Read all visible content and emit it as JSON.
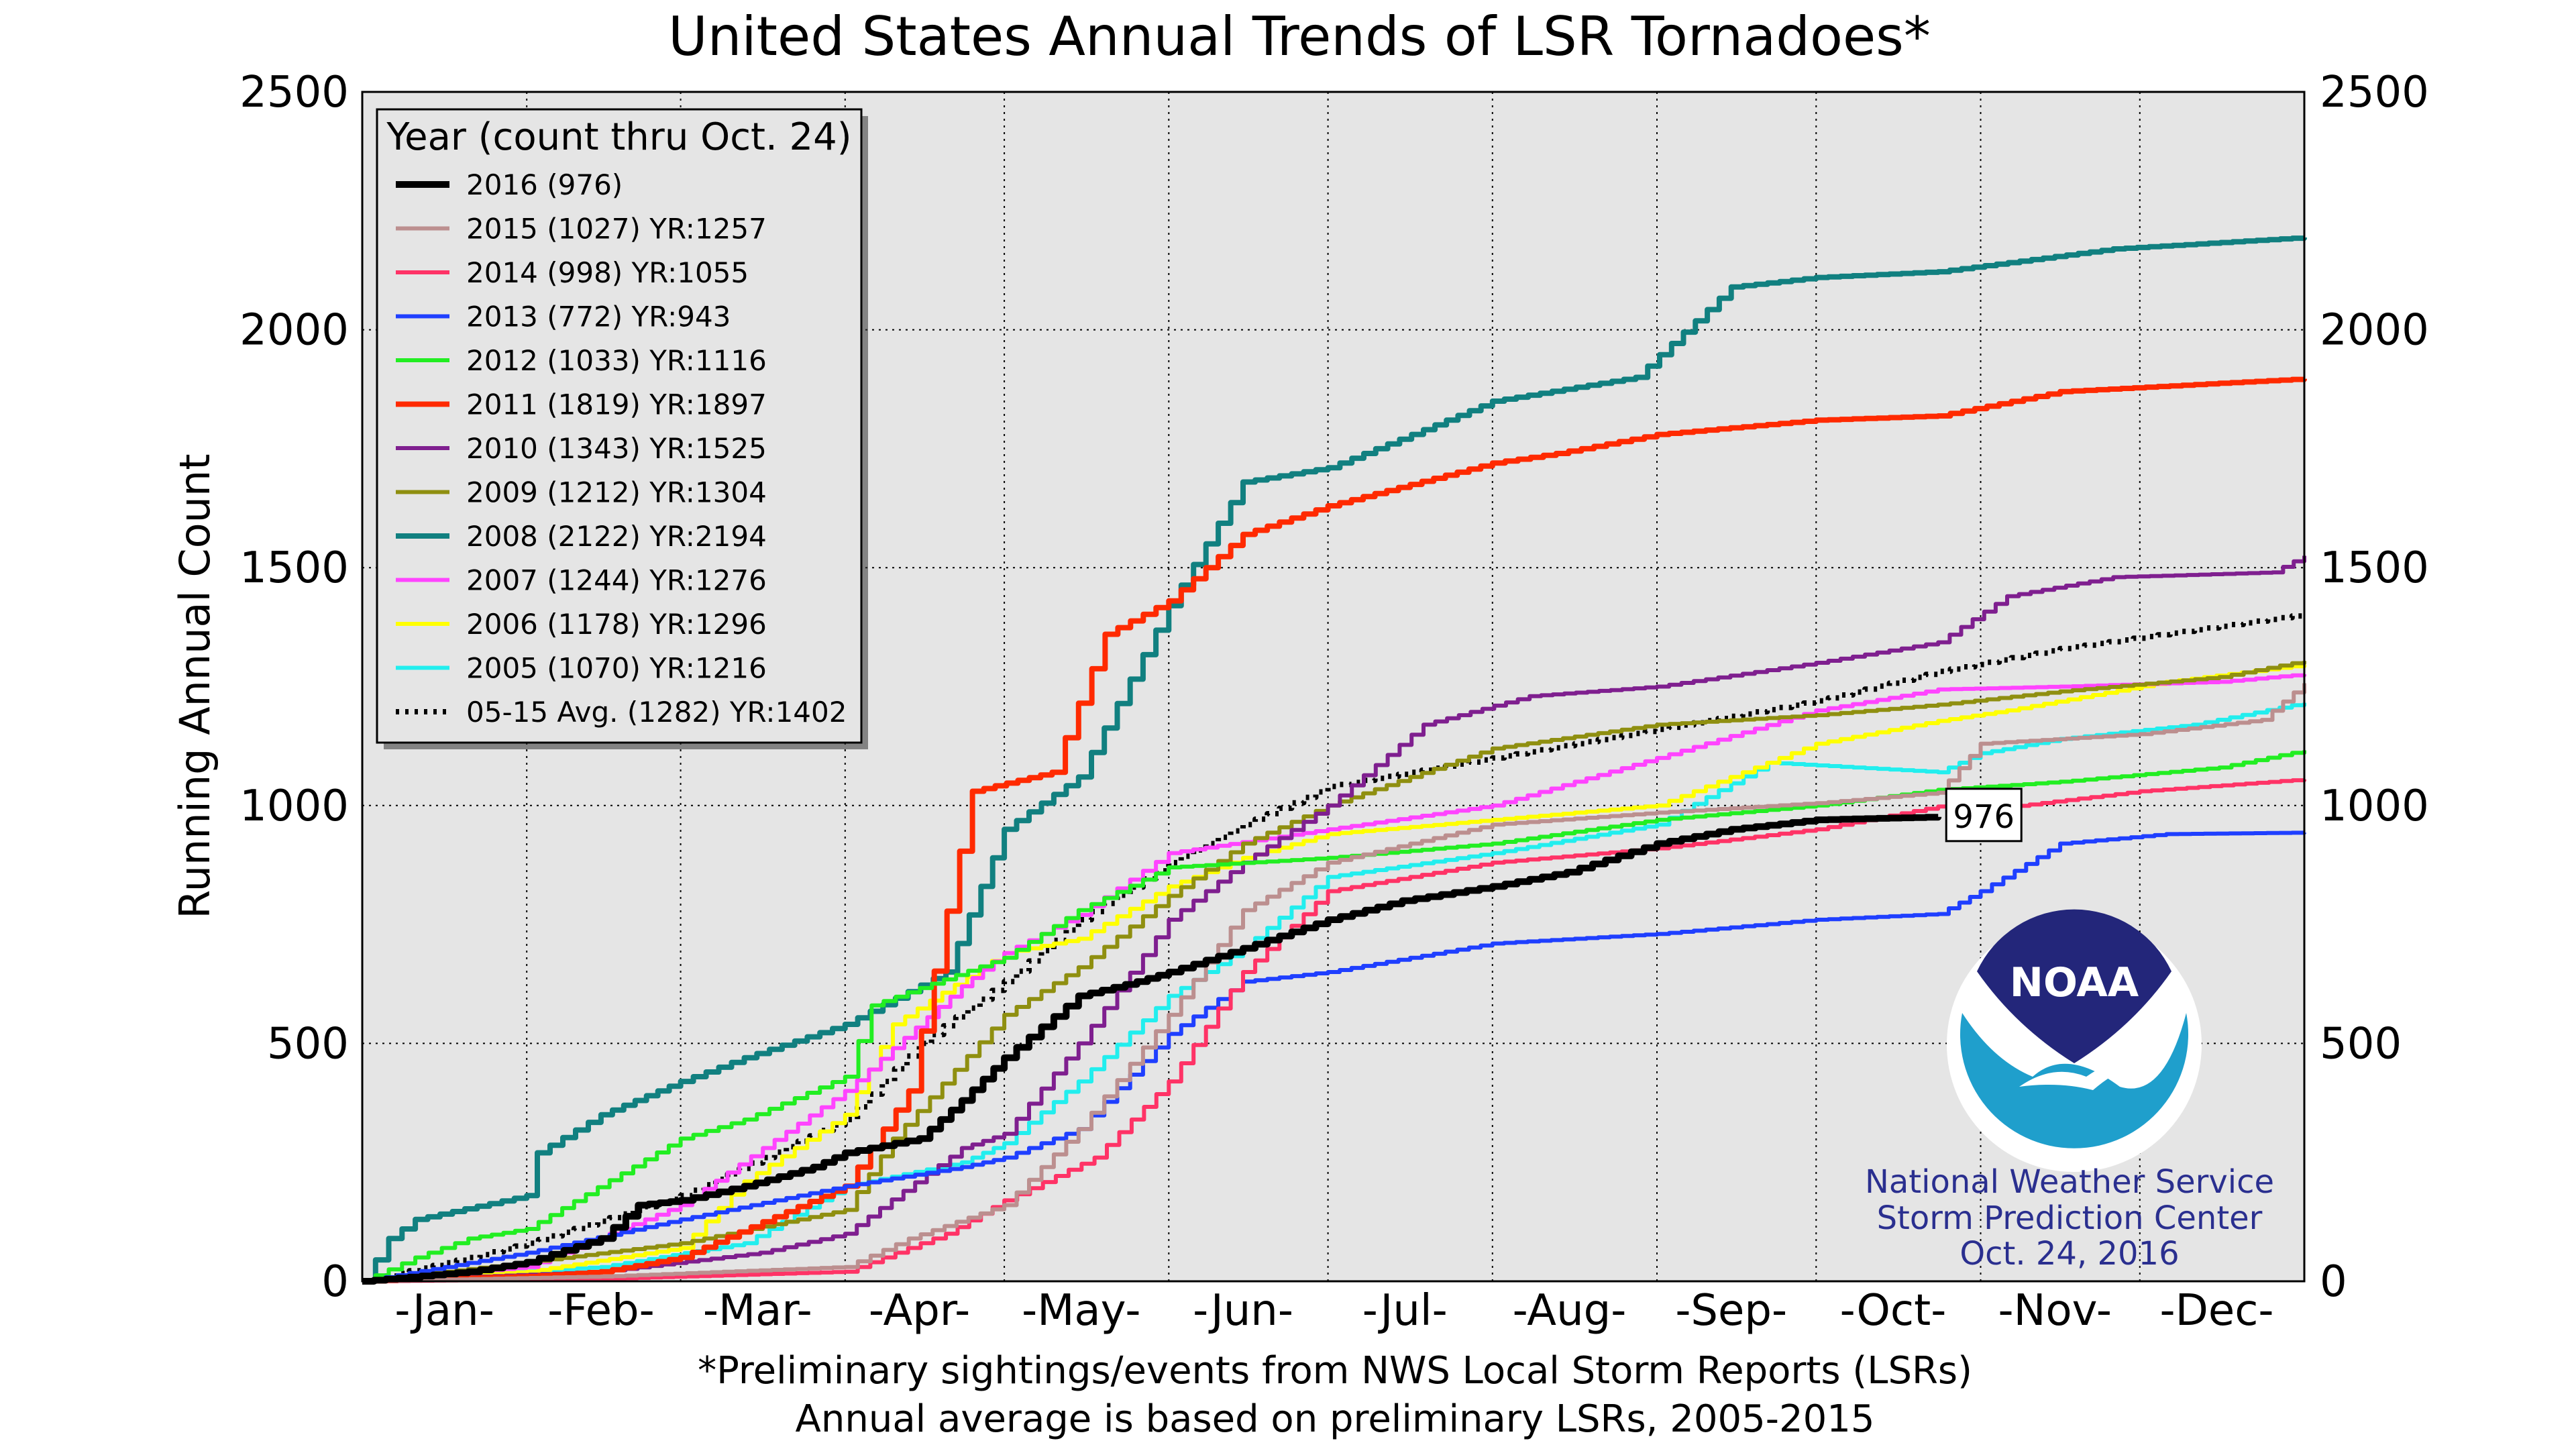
{
  "chart_data": {
    "type": "line",
    "title": "United States Annual Trends of LSR Tornadoes*",
    "ylabel": "Running Annual Count",
    "ylim": [
      0,
      2500
    ],
    "yticks": [
      0,
      500,
      1000,
      1500,
      2000,
      2500
    ],
    "x_unit": "day of year",
    "xlim": [
      0,
      366
    ],
    "months": [
      {
        "label": "-Jan-",
        "center": 15.5
      },
      {
        "label": "-Feb-",
        "center": 45
      },
      {
        "label": "-Mar-",
        "center": 74.5
      },
      {
        "label": "-Apr-",
        "center": 105
      },
      {
        "label": "-May-",
        "center": 135.5
      },
      {
        "label": "-Jun-",
        "center": 166
      },
      {
        "label": "-Jul-",
        "center": 196.5
      },
      {
        "label": "-Aug-",
        "center": 227.5
      },
      {
        "label": "-Sep-",
        "center": 258
      },
      {
        "label": "-Oct-",
        "center": 288.5
      },
      {
        "label": "-Nov-",
        "center": 319
      },
      {
        "label": "-Dec-",
        "center": 349.5
      }
    ],
    "month_gridlines": [
      31,
      60,
      91,
      121,
      152,
      182,
      213,
      244,
      274,
      305,
      335
    ],
    "legend": {
      "title": "Year (count thru Oct. 24)",
      "position": "upper-left"
    },
    "grid": true,
    "series": [
      {
        "label": "2016 (976)",
        "color": "#000000",
        "width": 5,
        "dash": "",
        "points": [
          [
            0,
            0
          ],
          [
            20,
            20
          ],
          [
            31,
            40
          ],
          [
            45,
            90
          ],
          [
            52,
            160
          ],
          [
            60,
            170
          ],
          [
            72,
            200
          ],
          [
            85,
            240
          ],
          [
            91,
            270
          ],
          [
            105,
            300
          ],
          [
            113,
            380
          ],
          [
            121,
            470
          ],
          [
            135,
            600
          ],
          [
            146,
            630
          ],
          [
            152,
            650
          ],
          [
            166,
            700
          ],
          [
            182,
            760
          ],
          [
            196,
            800
          ],
          [
            213,
            830
          ],
          [
            227,
            860
          ],
          [
            244,
            920
          ],
          [
            258,
            950
          ],
          [
            274,
            970
          ],
          [
            297,
            976
          ]
        ]
      },
      {
        "label": "2015 (1027) YR:1257",
        "color": "#bc8f8f",
        "width": 3,
        "dash": "",
        "points": [
          [
            0,
            0
          ],
          [
            45,
            10
          ],
          [
            91,
            30
          ],
          [
            103,
            90
          ],
          [
            121,
            160
          ],
          [
            135,
            320
          ],
          [
            152,
            560
          ],
          [
            166,
            780
          ],
          [
            182,
            880
          ],
          [
            213,
            960
          ],
          [
            244,
            985
          ],
          [
            274,
            1005
          ],
          [
            297,
            1027
          ],
          [
            305,
            1130
          ],
          [
            335,
            1150
          ],
          [
            358,
            1180
          ],
          [
            366,
            1257
          ]
        ]
      },
      {
        "label": "2014 (998) YR:1055",
        "color": "#ff3366",
        "width": 3,
        "dash": "",
        "points": [
          [
            0,
            0
          ],
          [
            45,
            5
          ],
          [
            91,
            20
          ],
          [
            110,
            100
          ],
          [
            121,
            170
          ],
          [
            138,
            260
          ],
          [
            152,
            420
          ],
          [
            166,
            650
          ],
          [
            182,
            820
          ],
          [
            213,
            880
          ],
          [
            244,
            910
          ],
          [
            274,
            950
          ],
          [
            297,
            998
          ],
          [
            305,
            990
          ],
          [
            335,
            1030
          ],
          [
            366,
            1055
          ]
        ]
      },
      {
        "label": "2013 (772) YR:943",
        "color": "#1f3fff",
        "width": 3,
        "dash": "",
        "points": [
          [
            0,
            0
          ],
          [
            31,
            60
          ],
          [
            60,
            130
          ],
          [
            91,
            200
          ],
          [
            113,
            240
          ],
          [
            121,
            260
          ],
          [
            135,
            320
          ],
          [
            152,
            520
          ],
          [
            166,
            630
          ],
          [
            182,
            650
          ],
          [
            213,
            710
          ],
          [
            244,
            730
          ],
          [
            274,
            760
          ],
          [
            297,
            772
          ],
          [
            305,
            820
          ],
          [
            320,
            920
          ],
          [
            340,
            940
          ],
          [
            366,
            943
          ]
        ]
      },
      {
        "label": "2012 (1033) YR:1116",
        "color": "#22ee22",
        "width": 3,
        "dash": "",
        "points": [
          [
            0,
            0
          ],
          [
            10,
            50
          ],
          [
            20,
            90
          ],
          [
            31,
            110
          ],
          [
            60,
            300
          ],
          [
            72,
            340
          ],
          [
            91,
            430
          ],
          [
            96,
            580
          ],
          [
            121,
            680
          ],
          [
            135,
            780
          ],
          [
            152,
            870
          ],
          [
            182,
            890
          ],
          [
            213,
            920
          ],
          [
            244,
            970
          ],
          [
            274,
            1000
          ],
          [
            297,
            1033
          ],
          [
            320,
            1050
          ],
          [
            350,
            1080
          ],
          [
            366,
            1116
          ]
        ]
      },
      {
        "label": "2011 (1819) YR:1897",
        "color": "#ff2a00",
        "width": 4,
        "dash": "",
        "points": [
          [
            0,
            0
          ],
          [
            31,
            10
          ],
          [
            45,
            20
          ],
          [
            60,
            50
          ],
          [
            91,
            200
          ],
          [
            103,
            400
          ],
          [
            115,
            1030
          ],
          [
            130,
            1070
          ],
          [
            140,
            1360
          ],
          [
            152,
            1430
          ],
          [
            166,
            1570
          ],
          [
            182,
            1630
          ],
          [
            213,
            1720
          ],
          [
            225,
            1740
          ],
          [
            244,
            1780
          ],
          [
            274,
            1810
          ],
          [
            297,
            1819
          ],
          [
            320,
            1870
          ],
          [
            366,
            1897
          ]
        ]
      },
      {
        "label": "2010 (1343) YR:1525",
        "color": "#7f1f8f",
        "width": 3,
        "dash": "",
        "points": [
          [
            0,
            0
          ],
          [
            45,
            20
          ],
          [
            75,
            60
          ],
          [
            91,
            100
          ],
          [
            113,
            280
          ],
          [
            121,
            310
          ],
          [
            135,
            500
          ],
          [
            152,
            760
          ],
          [
            166,
            880
          ],
          [
            182,
            1000
          ],
          [
            200,
            1170
          ],
          [
            220,
            1230
          ],
          [
            244,
            1250
          ],
          [
            274,
            1300
          ],
          [
            297,
            1343
          ],
          [
            310,
            1440
          ],
          [
            330,
            1480
          ],
          [
            360,
            1490
          ],
          [
            366,
            1525
          ]
        ]
      },
      {
        "label": "2009 (1212) YR:1304",
        "color": "#8f8f10",
        "width": 3,
        "dash": "",
        "points": [
          [
            0,
            0
          ],
          [
            31,
            40
          ],
          [
            60,
            80
          ],
          [
            91,
            150
          ],
          [
            100,
            300
          ],
          [
            121,
            560
          ],
          [
            135,
            660
          ],
          [
            152,
            810
          ],
          [
            166,
            920
          ],
          [
            182,
            1000
          ],
          [
            213,
            1120
          ],
          [
            244,
            1170
          ],
          [
            274,
            1190
          ],
          [
            297,
            1212
          ],
          [
            320,
            1240
          ],
          [
            350,
            1270
          ],
          [
            366,
            1304
          ]
        ]
      },
      {
        "label": "2008 (2122) YR:2194",
        "color": "#118080",
        "width": 4,
        "dash": "",
        "points": [
          [
            0,
            0
          ],
          [
            5,
            90
          ],
          [
            10,
            130
          ],
          [
            31,
            180
          ],
          [
            33,
            270
          ],
          [
            45,
            350
          ],
          [
            60,
            420
          ],
          [
            72,
            470
          ],
          [
            91,
            540
          ],
          [
            110,
            650
          ],
          [
            121,
            950
          ],
          [
            135,
            1060
          ],
          [
            152,
            1420
          ],
          [
            166,
            1680
          ],
          [
            182,
            1710
          ],
          [
            200,
            1790
          ],
          [
            213,
            1850
          ],
          [
            240,
            1900
          ],
          [
            258,
            2090
          ],
          [
            274,
            2110
          ],
          [
            297,
            2122
          ],
          [
            330,
            2170
          ],
          [
            366,
            2194
          ]
        ]
      },
      {
        "label": "2007 (1244) YR:1276",
        "color": "#ff44ff",
        "width": 3,
        "dash": "",
        "points": [
          [
            0,
            0
          ],
          [
            31,
            30
          ],
          [
            60,
            160
          ],
          [
            91,
            400
          ],
          [
            100,
            490
          ],
          [
            113,
            620
          ],
          [
            121,
            690
          ],
          [
            135,
            770
          ],
          [
            152,
            900
          ],
          [
            182,
            950
          ],
          [
            213,
            1000
          ],
          [
            244,
            1100
          ],
          [
            274,
            1200
          ],
          [
            297,
            1244
          ],
          [
            320,
            1250
          ],
          [
            350,
            1260
          ],
          [
            366,
            1276
          ]
        ]
      },
      {
        "label": "2006 (1178) YR:1296",
        "color": "#ffff00",
        "width": 3,
        "dash": "",
        "points": [
          [
            0,
            0
          ],
          [
            31,
            20
          ],
          [
            60,
            70
          ],
          [
            72,
            210
          ],
          [
            91,
            350
          ],
          [
            100,
            540
          ],
          [
            121,
            690
          ],
          [
            135,
            720
          ],
          [
            152,
            830
          ],
          [
            166,
            890
          ],
          [
            182,
            940
          ],
          [
            213,
            970
          ],
          [
            244,
            1000
          ],
          [
            274,
            1130
          ],
          [
            297,
            1178
          ],
          [
            310,
            1200
          ],
          [
            340,
            1260
          ],
          [
            366,
            1296
          ]
        ]
      },
      {
        "label": "2005 (1070) YR:1216",
        "color": "#22eeee",
        "width": 3,
        "dash": "",
        "points": [
          [
            0,
            0
          ],
          [
            45,
            30
          ],
          [
            72,
            80
          ],
          [
            91,
            200
          ],
          [
            113,
            250
          ],
          [
            121,
            290
          ],
          [
            135,
            420
          ],
          [
            152,
            600
          ],
          [
            166,
            700
          ],
          [
            182,
            850
          ],
          [
            213,
            900
          ],
          [
            244,
            960
          ],
          [
            265,
            1090
          ],
          [
            297,
            1070
          ],
          [
            305,
            1110
          ],
          [
            320,
            1140
          ],
          [
            345,
            1170
          ],
          [
            366,
            1216
          ]
        ]
      },
      {
        "label": "05-15 Avg. (1282) YR:1402",
        "color": "#000000",
        "width": 4,
        "dash": "5,9",
        "points": [
          [
            0,
            0
          ],
          [
            20,
            50
          ],
          [
            31,
            80
          ],
          [
            60,
            180
          ],
          [
            91,
            340
          ],
          [
            105,
            500
          ],
          [
            121,
            630
          ],
          [
            135,
            760
          ],
          [
            152,
            880
          ],
          [
            166,
            960
          ],
          [
            182,
            1040
          ],
          [
            213,
            1100
          ],
          [
            244,
            1160
          ],
          [
            274,
            1220
          ],
          [
            297,
            1282
          ],
          [
            320,
            1330
          ],
          [
            366,
            1402
          ]
        ]
      }
    ],
    "annotation": {
      "text": "976",
      "x": 297,
      "y": 976
    },
    "footnotes": [
      "*Preliminary sightings/events from NWS Local Storm Reports (LSRs)",
      "Annual average is based on preliminary LSRs, 2005-2015"
    ]
  },
  "logo": {
    "text": "NOAA",
    "color_dark": "#23267a",
    "color_light": "#1f9fcc"
  },
  "credits": [
    "National Weather Service",
    "Storm Prediction Center",
    "Oct. 24, 2016"
  ]
}
